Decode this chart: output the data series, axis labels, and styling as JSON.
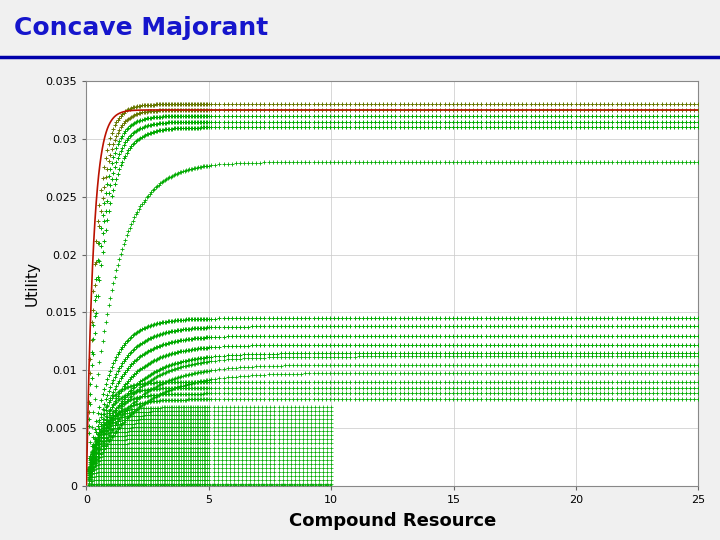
{
  "title": "Concave Majorant",
  "title_color": "#1515CC",
  "title_fontsize": 18,
  "xlabel": "Compound Resource",
  "xlabel_fontsize": 13,
  "xlabel_fontweight": "bold",
  "ylabel": "Utility",
  "ylabel_fontsize": 11,
  "background_color": "#F0F0F0",
  "plot_bg_color": "#FFFFFF",
  "xlim": [
    0,
    25
  ],
  "ylim": [
    0,
    0.035
  ],
  "xticks": [
    0,
    5,
    10,
    15,
    20,
    25
  ],
  "yticks": [
    0,
    0.005,
    0.01,
    0.015,
    0.02,
    0.025,
    0.03,
    0.035
  ],
  "grid_color": "#CCCCCC",
  "red_curve_color": "#BB1100",
  "green_color": "#00AA00",
  "olive_color": "#667700",
  "separator_color": "#0000AA"
}
